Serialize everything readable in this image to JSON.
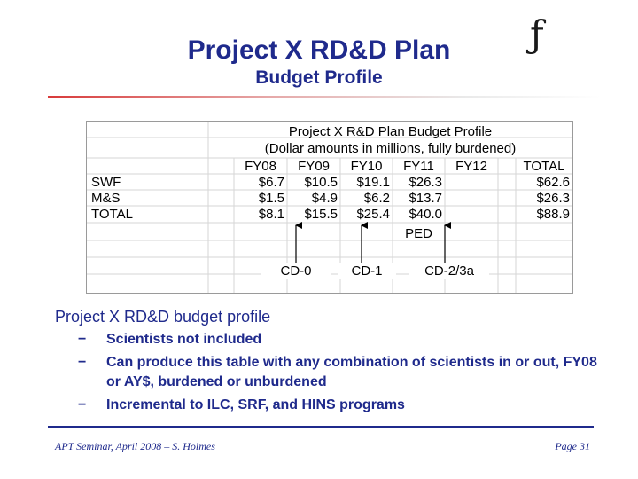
{
  "slide": {
    "title": "Project X RD&D Plan",
    "subtitle": "Budget Profile",
    "logo_glyph": "ƒ"
  },
  "budget_table": {
    "caption_line1": "Project X R&D Plan Budget Profile",
    "caption_line2": "(Dollar amounts in millions, fully burdened)",
    "columns": [
      "FY08",
      "FY09",
      "FY10",
      "FY11",
      "FY12",
      "TOTAL"
    ],
    "rows": [
      {
        "label": "SWF",
        "values": [
          "$6.7",
          "$10.5",
          "$19.1",
          "$26.3",
          "",
          "$62.6"
        ]
      },
      {
        "label": "M&S",
        "values": [
          "$1.5",
          "$4.9",
          "$6.2",
          "$13.7",
          "",
          "$26.3"
        ]
      },
      {
        "label": "TOTAL",
        "values": [
          "$8.1",
          "$15.5",
          "$25.4",
          "$40.0",
          "",
          "$88.9"
        ]
      }
    ],
    "ped_label": "PED",
    "milestones": [
      "CD-0",
      "CD-1",
      "CD-2/3a"
    ]
  },
  "bullets": {
    "main": "Project X RD&D budget profile",
    "dash": "−",
    "items": [
      "Scientists not included",
      "Can produce this table with any combination of scientists in or out, FY08 or AY$, burdened or unburdened",
      "Incremental to ILC, SRF, and HINS programs"
    ]
  },
  "footer": {
    "left": "APT Seminar, April 2008 – S. Holmes",
    "right": "Page  31"
  }
}
